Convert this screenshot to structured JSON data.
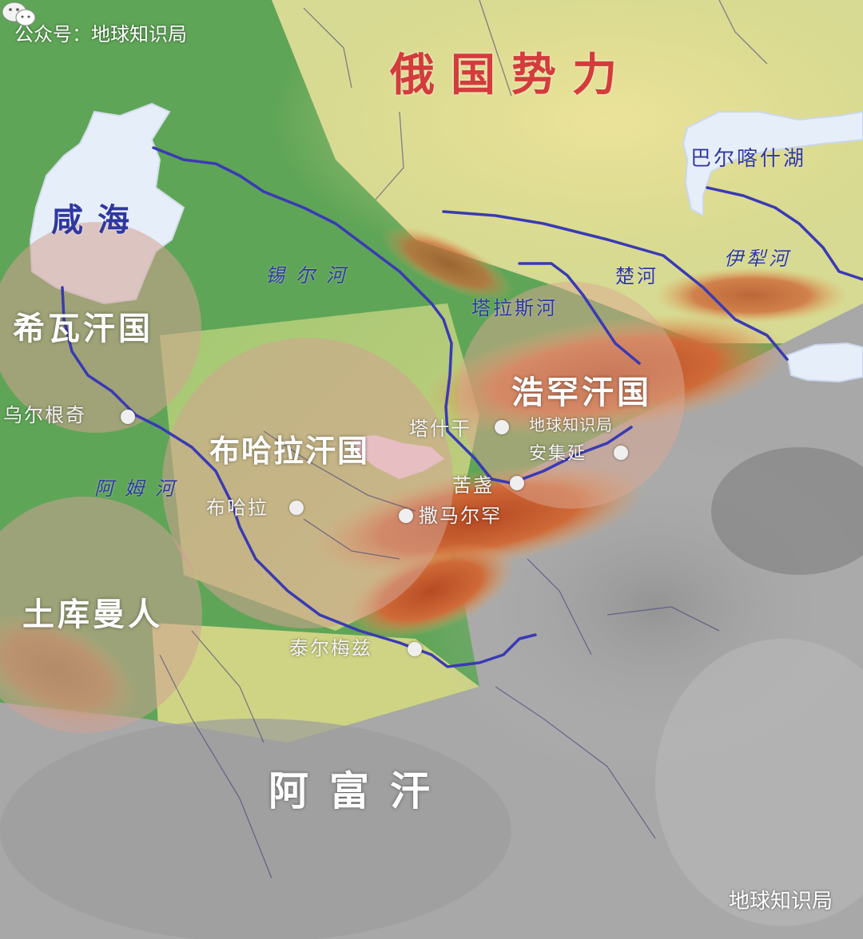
{
  "watermark_top": "公众号：地球知识局",
  "watermark_bottom": "地球知识局",
  "wechat_icon": "wechat-icon",
  "colors": {
    "lowland": "#5fa557",
    "steppe": "#e6dd94",
    "mountain_red": "#c2552b",
    "mountain_grey": "#9a9a9a",
    "water": "#e4eefa",
    "river": "#3a3ab5",
    "khanate_circle": "#d29a86",
    "power_text": "#d33c3c"
  },
  "regions": {
    "russia": "俄国势力",
    "khiva": "希瓦汗国",
    "bukhara": "布哈拉汗国",
    "kokand": "浩罕汗国",
    "turkmen": "土库曼人",
    "afghanistan": "阿富汗",
    "caspian": "咸海",
    "balkhash": "巴尔喀什湖"
  },
  "rivers": {
    "syr": "锡尔河",
    "amu": "阿姆河",
    "talas": "塔拉斯河",
    "chu": "楚河",
    "ili": "伊犁河"
  },
  "cities": {
    "urgench": "乌尔根奇",
    "bukhara": "布哈拉",
    "samarkand": "撒马尔罕",
    "tashkent": "塔什干",
    "khujand": "苦盏",
    "andijan": "安集延",
    "termez": "泰尔梅兹",
    "watermark_city": "地球知识局"
  }
}
